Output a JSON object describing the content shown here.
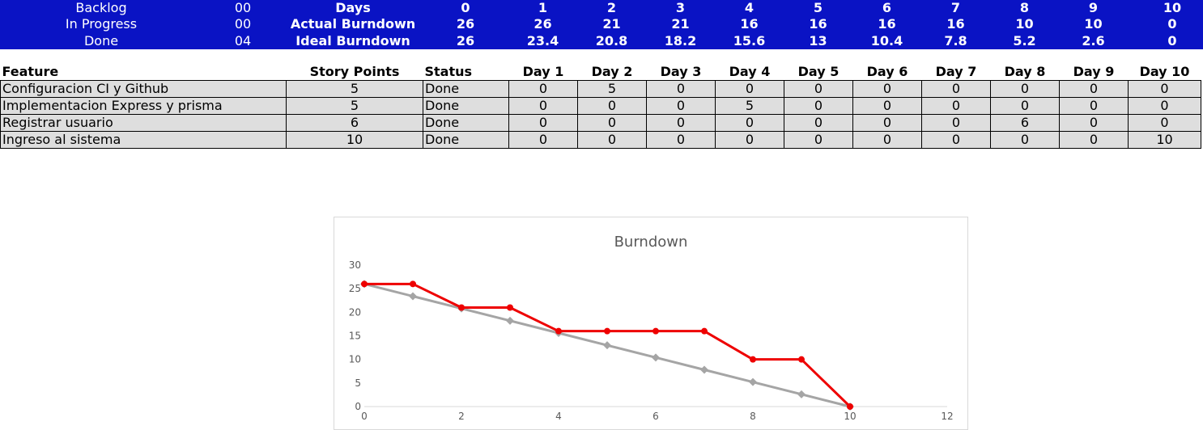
{
  "summary": {
    "status_rows": [
      {
        "label": "Backlog",
        "value": "00"
      },
      {
        "label": "In Progress",
        "value": "00"
      },
      {
        "label": "Done",
        "value": "04"
      }
    ],
    "rows": [
      {
        "label": "Days",
        "values": [
          "0",
          "1",
          "2",
          "3",
          "4",
          "5",
          "6",
          "7",
          "8",
          "9",
          "10"
        ]
      },
      {
        "label": "Actual Burndown",
        "values": [
          "26",
          "26",
          "21",
          "21",
          "16",
          "16",
          "16",
          "16",
          "10",
          "10",
          "0"
        ]
      },
      {
        "label": "Ideal Burndown",
        "values": [
          "26",
          "23.4",
          "20.8",
          "18.2",
          "15.6",
          "13",
          "10.4",
          "7.8",
          "5.2",
          "2.6",
          "0"
        ]
      }
    ]
  },
  "features": {
    "headers": [
      "Feature",
      "Story Points",
      "Status",
      "Day 1",
      "Day 2",
      "Day 3",
      "Day 4",
      "Day 5",
      "Day 6",
      "Day 7",
      "Day 8",
      "Day 9",
      "Day 10"
    ],
    "rows": [
      {
        "feature": "Configuracion CI y Github",
        "points": "5",
        "status": "Done",
        "days": [
          "0",
          "5",
          "0",
          "0",
          "0",
          "0",
          "0",
          "0",
          "0",
          "0"
        ]
      },
      {
        "feature": "Implementacion Express y prisma",
        "points": "5",
        "status": "Done",
        "days": [
          "0",
          "0",
          "0",
          "5",
          "0",
          "0",
          "0",
          "0",
          "0",
          "0"
        ]
      },
      {
        "feature": "Registrar usuario",
        "points": "6",
        "status": "Done",
        "days": [
          "0",
          "0",
          "0",
          "0",
          "0",
          "0",
          "0",
          "6",
          "0",
          "0"
        ]
      },
      {
        "feature": "Ingreso al sistema",
        "points": "10",
        "status": "Done",
        "days": [
          "0",
          "0",
          "0",
          "0",
          "0",
          "0",
          "0",
          "0",
          "0",
          "10"
        ]
      }
    ]
  },
  "chart_data": {
    "type": "line",
    "title": "Burndown",
    "xlabel": "",
    "ylabel": "",
    "x": [
      0,
      1,
      2,
      3,
      4,
      5,
      6,
      7,
      8,
      9,
      10
    ],
    "xlim": [
      0,
      12
    ],
    "ylim": [
      0,
      30
    ],
    "x_ticks": [
      "0",
      "2",
      "4",
      "6",
      "8",
      "10",
      "12"
    ],
    "y_ticks": [
      "0",
      "5",
      "10",
      "15",
      "20",
      "25",
      "30"
    ],
    "grid": false,
    "legend": "none",
    "series": [
      {
        "values": [
          26,
          23.4,
          20.8,
          18.2,
          15.6,
          13,
          10.4,
          7.8,
          5.2,
          2.6,
          0
        ],
        "color": "#a5a5a5",
        "marker": "diamond"
      },
      {
        "values": [
          26,
          26,
          21,
          21,
          16,
          16,
          16,
          16,
          10,
          10,
          0
        ],
        "color": "#ee0000",
        "marker": "circle"
      }
    ]
  }
}
